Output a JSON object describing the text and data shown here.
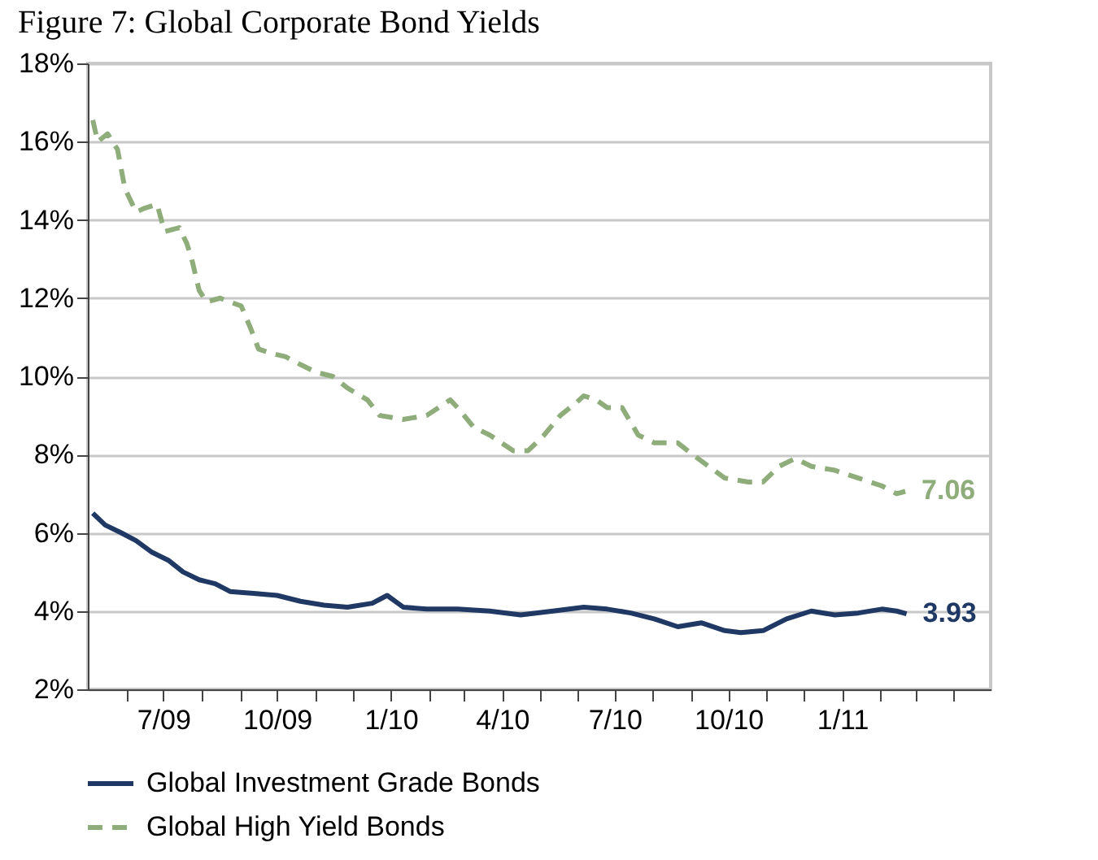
{
  "chart_data": {
    "type": "line",
    "title": "Figure 7: Global Corporate Bond Yields",
    "xlim": [
      "2009-05-01",
      "2011-05-01"
    ],
    "xticks": [
      {
        "value": "2009-06-01",
        "label": null
      },
      {
        "value": "2009-07-01",
        "label": "7/09"
      },
      {
        "value": "2009-08-01",
        "label": null
      },
      {
        "value": "2009-09-01",
        "label": null
      },
      {
        "value": "2009-10-01",
        "label": "10/09"
      },
      {
        "value": "2009-11-01",
        "label": null
      },
      {
        "value": "2009-12-01",
        "label": null
      },
      {
        "value": "2010-01-01",
        "label": "1/10"
      },
      {
        "value": "2010-02-01",
        "label": null
      },
      {
        "value": "2010-03-01",
        "label": null
      },
      {
        "value": "2010-04-01",
        "label": "4/10"
      },
      {
        "value": "2010-05-01",
        "label": null
      },
      {
        "value": "2010-06-01",
        "label": null
      },
      {
        "value": "2010-07-01",
        "label": "7/10"
      },
      {
        "value": "2010-08-01",
        "label": null
      },
      {
        "value": "2010-09-01",
        "label": null
      },
      {
        "value": "2010-10-01",
        "label": "10/10"
      },
      {
        "value": "2010-11-01",
        "label": null
      },
      {
        "value": "2010-12-01",
        "label": null
      },
      {
        "value": "2011-01-01",
        "label": "1/11"
      },
      {
        "value": "2011-02-01",
        "label": null
      },
      {
        "value": "2011-03-01",
        "label": null
      },
      {
        "value": "2011-04-01",
        "label": null
      }
    ],
    "ylim": [
      2,
      18
    ],
    "yticks": [
      {
        "value": 2,
        "label": "2%"
      },
      {
        "value": 4,
        "label": "4%"
      },
      {
        "value": 6,
        "label": "6%"
      },
      {
        "value": 8,
        "label": "8%"
      },
      {
        "value": 10,
        "label": "10%"
      },
      {
        "value": 12,
        "label": "12%"
      },
      {
        "value": 14,
        "label": "14%"
      },
      {
        "value": 16,
        "label": "16%"
      },
      {
        "value": 18,
        "label": "18%"
      }
    ],
    "grid": "y",
    "legend": "bottom",
    "series": [
      {
        "name": "Global Investment Grade Bonds",
        "color": "#1f3864",
        "line_style": "solid",
        "x": [
          "2009-05-05",
          "2009-05-15",
          "2009-05-28",
          "2009-06-09",
          "2009-06-22",
          "2009-07-05",
          "2009-07-17",
          "2009-07-30",
          "2009-08-12",
          "2009-08-24",
          "2009-09-12",
          "2009-10-01",
          "2009-10-20",
          "2009-11-08",
          "2009-11-27",
          "2009-12-17",
          "2009-12-29",
          "2010-01-11",
          "2010-01-30",
          "2010-02-24",
          "2010-03-22",
          "2010-04-16",
          "2010-05-12",
          "2010-06-06",
          "2010-06-25",
          "2010-07-14",
          "2010-08-02",
          "2010-08-21",
          "2010-09-09",
          "2010-09-28",
          "2010-10-11",
          "2010-10-29",
          "2010-11-17",
          "2010-12-07",
          "2010-12-26",
          "2011-01-14",
          "2011-02-02",
          "2011-02-14",
          "2011-02-22"
        ],
        "values": [
          6.5,
          6.2,
          6.0,
          5.8,
          5.5,
          5.3,
          5.0,
          4.8,
          4.7,
          4.5,
          4.45,
          4.4,
          4.25,
          4.15,
          4.1,
          4.2,
          4.4,
          4.1,
          4.05,
          4.05,
          4.0,
          3.9,
          4.0,
          4.1,
          4.05,
          3.95,
          3.8,
          3.6,
          3.7,
          3.5,
          3.45,
          3.5,
          3.8,
          4.0,
          3.9,
          3.95,
          4.05,
          4.0,
          3.93
        ]
      },
      {
        "name": "Global High Yield Bonds",
        "color": "#8fac7b",
        "line_style": "dashed",
        "x": [
          "2009-05-05",
          "2009-05-09",
          "2009-05-17",
          "2009-05-25",
          "2009-05-31",
          "2009-06-09",
          "2009-06-16",
          "2009-06-26",
          "2009-07-02",
          "2009-07-14",
          "2009-07-20",
          "2009-07-24",
          "2009-07-30",
          "2009-08-05",
          "2009-08-16",
          "2009-08-24",
          "2009-09-02",
          "2009-09-10",
          "2009-09-16",
          "2009-09-25",
          "2009-10-08",
          "2009-10-20",
          "2009-11-02",
          "2009-11-15",
          "2009-11-27",
          "2009-12-13",
          "2009-12-23",
          "2010-01-11",
          "2010-01-30",
          "2010-02-18",
          "2010-02-24",
          "2010-03-09",
          "2010-03-22",
          "2010-04-10",
          "2010-04-22",
          "2010-05-05",
          "2010-05-18",
          "2010-05-30",
          "2010-06-06",
          "2010-06-16",
          "2010-06-25",
          "2010-07-07",
          "2010-07-20",
          "2010-08-02",
          "2010-08-21",
          "2010-09-02",
          "2010-09-15",
          "2010-09-28",
          "2010-10-17",
          "2010-10-29",
          "2010-11-11",
          "2010-11-24",
          "2010-12-07",
          "2010-12-26",
          "2011-01-14",
          "2011-02-02",
          "2011-02-14",
          "2011-02-21"
        ],
        "values": [
          16.55,
          16.0,
          16.2,
          15.8,
          14.8,
          14.2,
          14.3,
          14.4,
          13.7,
          13.8,
          13.4,
          13.0,
          12.2,
          11.9,
          12.0,
          11.9,
          11.8,
          11.2,
          10.7,
          10.6,
          10.5,
          10.3,
          10.1,
          10.0,
          9.7,
          9.4,
          9.0,
          8.9,
          9.0,
          9.4,
          9.2,
          8.7,
          8.5,
          8.1,
          8.1,
          8.5,
          9.0,
          9.3,
          9.5,
          9.4,
          9.2,
          9.2,
          8.5,
          8.3,
          8.3,
          8.0,
          7.7,
          7.4,
          7.3,
          7.3,
          7.7,
          7.9,
          7.7,
          7.6,
          7.4,
          7.2,
          7.0,
          7.06
        ]
      }
    ],
    "annotations": [
      {
        "text": "7.06",
        "x": "2011-02-21",
        "y": 7.06
      },
      {
        "text": "3.93",
        "x": "2011-02-22",
        "y": 3.93
      }
    ]
  }
}
